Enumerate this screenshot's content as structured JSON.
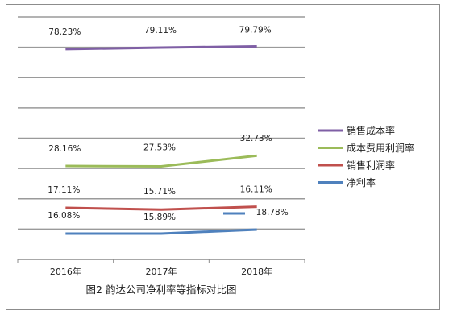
{
  "chart_data": {
    "type": "line",
    "title": "",
    "caption": "图2   韵达公司净利率等指标对比图",
    "categories": [
      "2016年",
      "2017年",
      "2018年"
    ],
    "ylabel": "",
    "xlabel": "",
    "grid": true,
    "legend_position": "right",
    "series": [
      {
        "name": "销售成本率",
        "color": "#7f5fa5",
        "values": [
          78.23,
          79.11,
          79.79
        ],
        "labels": [
          "78.23%",
          "79.11%",
          "79.79%"
        ]
      },
      {
        "name": "成本费用利润率",
        "color": "#9bbb59",
        "values": [
          28.16,
          27.53,
          32.73
        ],
        "labels": [
          "28.16%",
          "27.53%",
          "32.73%"
        ]
      },
      {
        "name": "销售利润率",
        "color": "#c0504d",
        "values": [
          17.11,
          15.71,
          16.11
        ],
        "labels": [
          "17.11%",
          "15.71%",
          "16.11%"
        ]
      },
      {
        "name": "净利率",
        "color": "#4f81bd",
        "values": [
          16.08,
          15.89,
          18.78
        ],
        "labels": [
          "16.08%",
          "15.89%",
          "18.78%"
        ]
      }
    ]
  }
}
